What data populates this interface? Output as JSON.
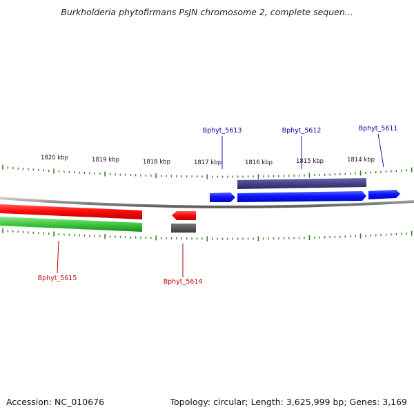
{
  "title": "Burkholderia phytofirmans PsJN chromosome 2, complete sequen...",
  "footer": {
    "accession": "Accession: NC_010676",
    "summary": "Topology: circular; Length: 3,625,999 bp; Genes: 3,169"
  },
  "colors": {
    "backbone": "#8c8c8c",
    "ticks": "#2e7d1f",
    "forward_cds": "#0a14ff",
    "forward_gene": "#4a4590",
    "reverse_cds": "#ff0a0a",
    "reverse_gene_a": "#3cc83c",
    "reverse_gene_b": "#5a5a5a",
    "label_forward": "#00009c",
    "label_reverse": "#c00000"
  },
  "scale_labels": [
    "1820 kbp",
    "1819 kbp",
    "1818 kbp",
    "1817 kbp",
    "1816 kbp",
    "1815 kbp",
    "1814 kbp"
  ],
  "genes": [
    {
      "name": "Bphyt_5613",
      "strand": "+"
    },
    {
      "name": "Bphyt_5612",
      "strand": "+"
    },
    {
      "name": "Bphyt_5611",
      "strand": "+"
    },
    {
      "name": "Bphyt_5615",
      "strand": "-"
    },
    {
      "name": "Bphyt_5614",
      "strand": "-"
    }
  ]
}
